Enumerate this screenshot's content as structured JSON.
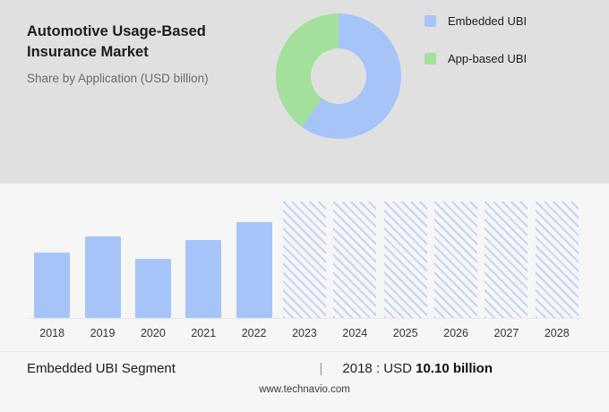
{
  "header": {
    "title": "Automotive Usage-Based Insurance Market",
    "subtitle": "Share by Application (USD billion)"
  },
  "legend": {
    "items": [
      {
        "label": "Embedded UBI",
        "color": "#a6c4f8"
      },
      {
        "label": "App-based UBI",
        "color": "#a3e09c"
      }
    ]
  },
  "chart_data": [
    {
      "type": "pie",
      "donut": true,
      "title": "Share by Application (USD billion)",
      "labels": [
        "Embedded UBI",
        "App-based UBI"
      ],
      "values": [
        60,
        40
      ],
      "colors": [
        "#a6c4f8",
        "#a3e09c"
      ],
      "legend_position": "right",
      "hole_color": "#e0e0e0"
    },
    {
      "type": "bar",
      "title": "Embedded UBI Segment",
      "categories": [
        "2018",
        "2019",
        "2020",
        "2021",
        "2022",
        "2023",
        "2024",
        "2025",
        "2026",
        "2027",
        "2028"
      ],
      "values": [
        10.1,
        12.6,
        9.2,
        12.1,
        14.8,
        null,
        null,
        null,
        null,
        null,
        null
      ],
      "forecast_categories": [
        "2023",
        "2024",
        "2025",
        "2026",
        "2027",
        "2028"
      ],
      "forecast_style": "diagonal-hatch",
      "ylim": [
        0,
        18
      ],
      "bar_color": "#a6c4f8",
      "annotation": "2018 : USD 10.10 billion",
      "grid": false,
      "xlabel": "",
      "ylabel": ""
    }
  ],
  "footer": {
    "segment": "Embedded UBI Segment",
    "separator": "|",
    "stat_prefix": "2018 : USD",
    "stat_value": "10.10 billion",
    "website": "www.technavio.com"
  }
}
